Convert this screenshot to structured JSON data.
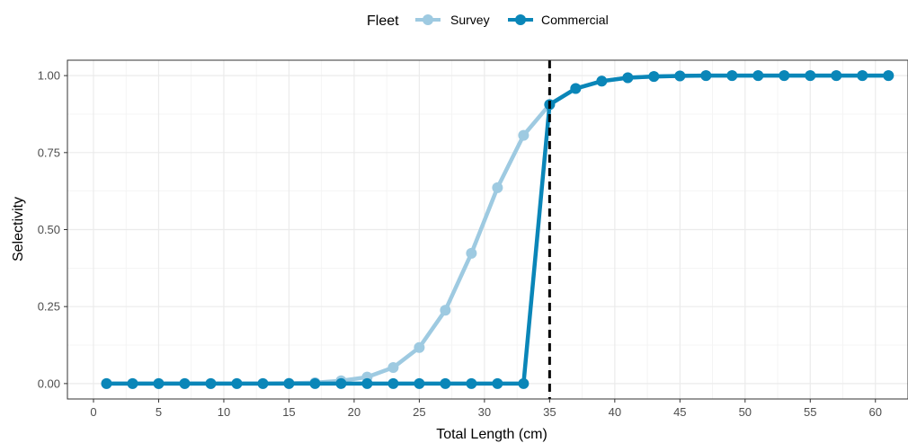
{
  "chart_data": {
    "type": "line",
    "xlabel": "Total Length (cm)",
    "ylabel": "Selectivity",
    "xlim": [
      -2.0,
      62.5
    ],
    "ylim": [
      -0.05,
      1.05
    ],
    "x_ticks": [
      0,
      5,
      10,
      15,
      20,
      25,
      30,
      35,
      40,
      45,
      50,
      55,
      60
    ],
    "x_tick_labels": [
      "0",
      "5",
      "10",
      "15",
      "20",
      "25",
      "30",
      "35",
      "40",
      "45",
      "50",
      "55",
      "60"
    ],
    "y_ticks": [
      0,
      0.25,
      0.5,
      0.75,
      1.0
    ],
    "y_tick_labels": [
      "0.00",
      "0.25",
      "0.50",
      "0.75",
      "1.00"
    ],
    "grid": true,
    "legend": {
      "title": "Fleet",
      "position": "top",
      "entries": [
        "Survey",
        "Commercial"
      ]
    },
    "reference_line": {
      "x": 35,
      "style": "dashed",
      "color": "#000000"
    },
    "series": [
      {
        "name": "Survey",
        "color": "#9ecae1",
        "x": [
          1,
          3,
          5,
          7,
          9,
          11,
          13,
          15,
          17,
          19,
          21,
          23,
          25,
          27,
          29,
          31,
          33,
          35,
          37,
          39,
          41,
          43,
          45,
          47,
          49,
          51,
          53,
          55,
          57,
          59,
          61
        ],
        "y": [
          0,
          0,
          0,
          0,
          0,
          0,
          0,
          0.001,
          0.003,
          0.009,
          0.021,
          0.052,
          0.117,
          0.238,
          0.423,
          0.636,
          0.806,
          0.906,
          0.958,
          0.982,
          0.993,
          0.997,
          0.999,
          1.0,
          1.0,
          1.0,
          1.0,
          1.0,
          1.0,
          1.0,
          1.0
        ]
      },
      {
        "name": "Commercial",
        "color": "#0a86b8",
        "x": [
          1,
          3,
          5,
          7,
          9,
          11,
          13,
          15,
          17,
          19,
          21,
          23,
          25,
          27,
          29,
          31,
          33,
          35,
          37,
          39,
          41,
          43,
          45,
          47,
          49,
          51,
          53,
          55,
          57,
          59,
          61
        ],
        "y": [
          0,
          0,
          0,
          0,
          0,
          0,
          0,
          0,
          0,
          0,
          0,
          0,
          0,
          0,
          0,
          0,
          0,
          0.906,
          0.958,
          0.982,
          0.993,
          0.997,
          0.999,
          1.0,
          1.0,
          1.0,
          1.0,
          1.0,
          1.0,
          1.0,
          1.0
        ]
      }
    ]
  }
}
